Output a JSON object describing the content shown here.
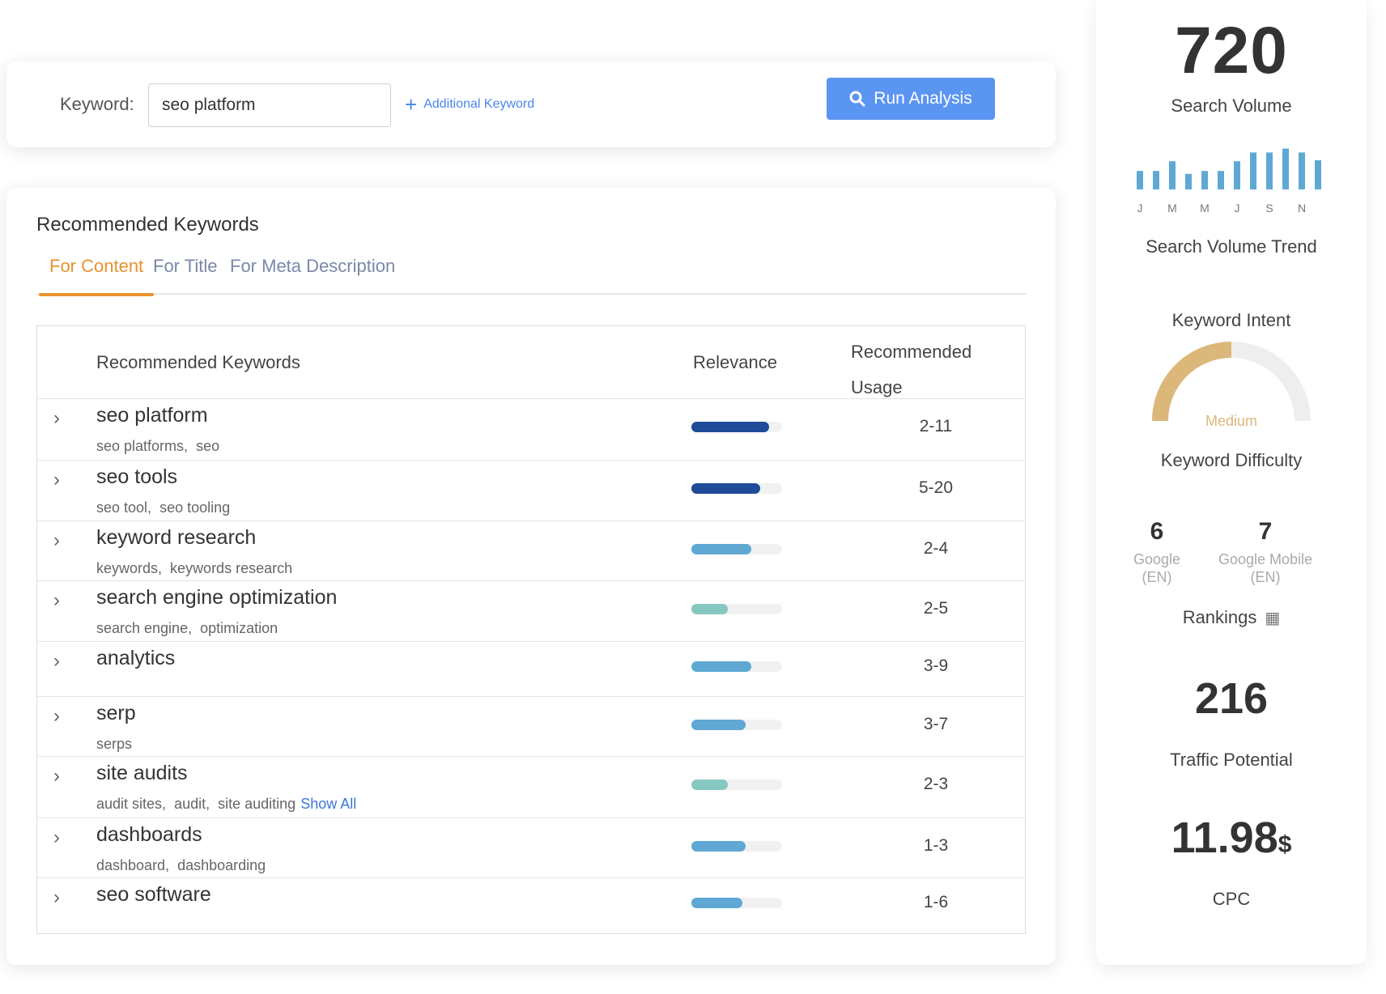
{
  "search": {
    "label": "Keyword:",
    "value": "seo platform",
    "additional_keyword": "Additional Keyword",
    "run_button": "Run Analysis"
  },
  "main": {
    "title": "Recommended Keywords",
    "tabs": [
      "For Content",
      "For Title",
      "For Meta Description"
    ],
    "active_tab": 0,
    "columns": {
      "keywords": "Recommended Keywords",
      "relevance": "Relevance",
      "usage_line1": "Recommended",
      "usage_line2": "Usage"
    },
    "rows": [
      {
        "keyword": "seo platform",
        "synonyms": [
          "seo platforms",
          "seo"
        ],
        "relevance": 0.86,
        "relevance_color": "#1f4b99",
        "usage": "2-11"
      },
      {
        "keyword": "seo tools",
        "synonyms": [
          "seo tool",
          "seo tooling"
        ],
        "relevance": 0.76,
        "relevance_color": "#1f4b99",
        "usage": "5-20"
      },
      {
        "keyword": "keyword research",
        "synonyms": [
          "keywords",
          "keywords research"
        ],
        "relevance": 0.66,
        "relevance_color": "#5fa8d3",
        "usage": "2-4"
      },
      {
        "keyword": "search engine optimization",
        "synonyms": [
          "search engine",
          "optimization"
        ],
        "relevance": 0.4,
        "relevance_color": "#86c7c1",
        "usage": "2-5"
      },
      {
        "keyword": "analytics",
        "synonyms": [],
        "relevance": 0.66,
        "relevance_color": "#5fa8d3",
        "usage": "3-9"
      },
      {
        "keyword": "serp",
        "synonyms": [
          "serps"
        ],
        "relevance": 0.6,
        "relevance_color": "#5fa8d3",
        "usage": "3-7"
      },
      {
        "keyword": "site audits",
        "synonyms": [
          "audit sites",
          "audit",
          "site auditing"
        ],
        "show_all": "Show All",
        "relevance": 0.4,
        "relevance_color": "#86c7c1",
        "usage": "2-3"
      },
      {
        "keyword": "dashboards",
        "synonyms": [
          "dashboard",
          "dashboarding"
        ],
        "relevance": 0.6,
        "relevance_color": "#5fa8d3",
        "usage": "1-3"
      },
      {
        "keyword": "seo software",
        "synonyms": [],
        "relevance": 0.56,
        "relevance_color": "#5fa8d3",
        "usage": "1-6"
      }
    ]
  },
  "side": {
    "search_volume": "720",
    "search_volume_label": "Search Volume",
    "trend": {
      "months": [
        "J",
        "M",
        "M",
        "J",
        "S",
        "N"
      ],
      "values": [
        38,
        38,
        58,
        32,
        38,
        38,
        58,
        76,
        76,
        84,
        76,
        60
      ],
      "color": "#5fa8d3"
    },
    "trend_label": "Search Volume Trend",
    "intent_label": "Keyword Intent",
    "difficulty": {
      "level": "Medium",
      "value": 0.5,
      "color": "#dbb87a",
      "track": "#eeeeee"
    },
    "difficulty_label": "Keyword Difficulty",
    "rankings": [
      {
        "value": "6",
        "engine_line1": "Google",
        "engine_line2": "(EN)"
      },
      {
        "value": "7",
        "engine_line1": "Google Mobile",
        "engine_line2": "(EN)"
      }
    ],
    "rankings_label": "Rankings",
    "traffic_potential": "216",
    "traffic_potential_label": "Traffic Potential",
    "cpc_value": "11.98",
    "cpc_currency": "$",
    "cpc_label": "CPC"
  }
}
